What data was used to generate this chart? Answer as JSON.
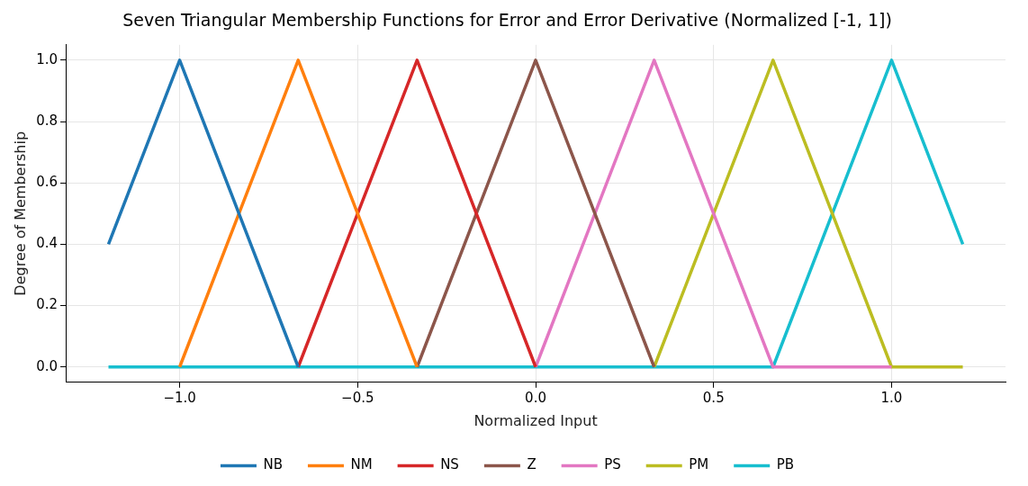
{
  "chart_data": {
    "type": "line",
    "title": "Seven Triangular Membership Functions for Error and Error Derivative (Normalized [-1, 1])",
    "xlabel": "Normalized Input",
    "ylabel": "Degree of Membership",
    "x": [
      -1.2,
      -1,
      -0.667,
      -0.333,
      0,
      0.333,
      0.667,
      1,
      1.2
    ],
    "series": [
      {
        "name": "NB",
        "color": "#1f77b4",
        "values": [
          0.4,
          1,
          0,
          null,
          null,
          null,
          null,
          null,
          null
        ]
      },
      {
        "name": "NM",
        "color": "#ff7f0e",
        "values": [
          null,
          0,
          1,
          0,
          null,
          null,
          null,
          null,
          null
        ]
      },
      {
        "name": "NS",
        "color": "#d62728",
        "values": [
          null,
          null,
          0,
          1,
          0,
          null,
          null,
          null,
          null
        ]
      },
      {
        "name": "Z",
        "color": "#8c564b",
        "values": [
          null,
          null,
          null,
          0,
          1,
          0,
          null,
          null,
          null
        ]
      },
      {
        "name": "PS",
        "color": "#e377c2",
        "values": [
          null,
          null,
          null,
          null,
          0,
          1,
          0,
          0,
          null
        ]
      },
      {
        "name": "PM",
        "color": "#bcbd22",
        "values": [
          null,
          null,
          null,
          null,
          null,
          0,
          1,
          0,
          0
        ]
      },
      {
        "name": "PB",
        "color": "#17becf",
        "values": [
          0,
          0,
          0,
          0,
          0,
          0,
          0,
          1,
          0.4
        ]
      }
    ],
    "xlim": [
      -1.32,
      1.32
    ],
    "xticks": [
      {
        "value": -1,
        "label": "−1.0"
      },
      {
        "value": -0.5,
        "label": "−0.5"
      },
      {
        "value": 0,
        "label": "0.0"
      },
      {
        "value": 0.5,
        "label": "0.5"
      },
      {
        "value": 1,
        "label": "1.0"
      }
    ],
    "ylim": [
      -0.05,
      1.05
    ],
    "yticks": [
      {
        "value": 0,
        "label": "0.0"
      },
      {
        "value": 0.2,
        "label": "0.2"
      },
      {
        "value": 0.4,
        "label": "0.4"
      },
      {
        "value": 0.6,
        "label": "0.6"
      },
      {
        "value": 0.8,
        "label": "0.8"
      },
      {
        "value": 1,
        "label": "1.0"
      }
    ],
    "grid": true,
    "legend": "bottom",
    "marker": "none",
    "line_style": "solid"
  }
}
